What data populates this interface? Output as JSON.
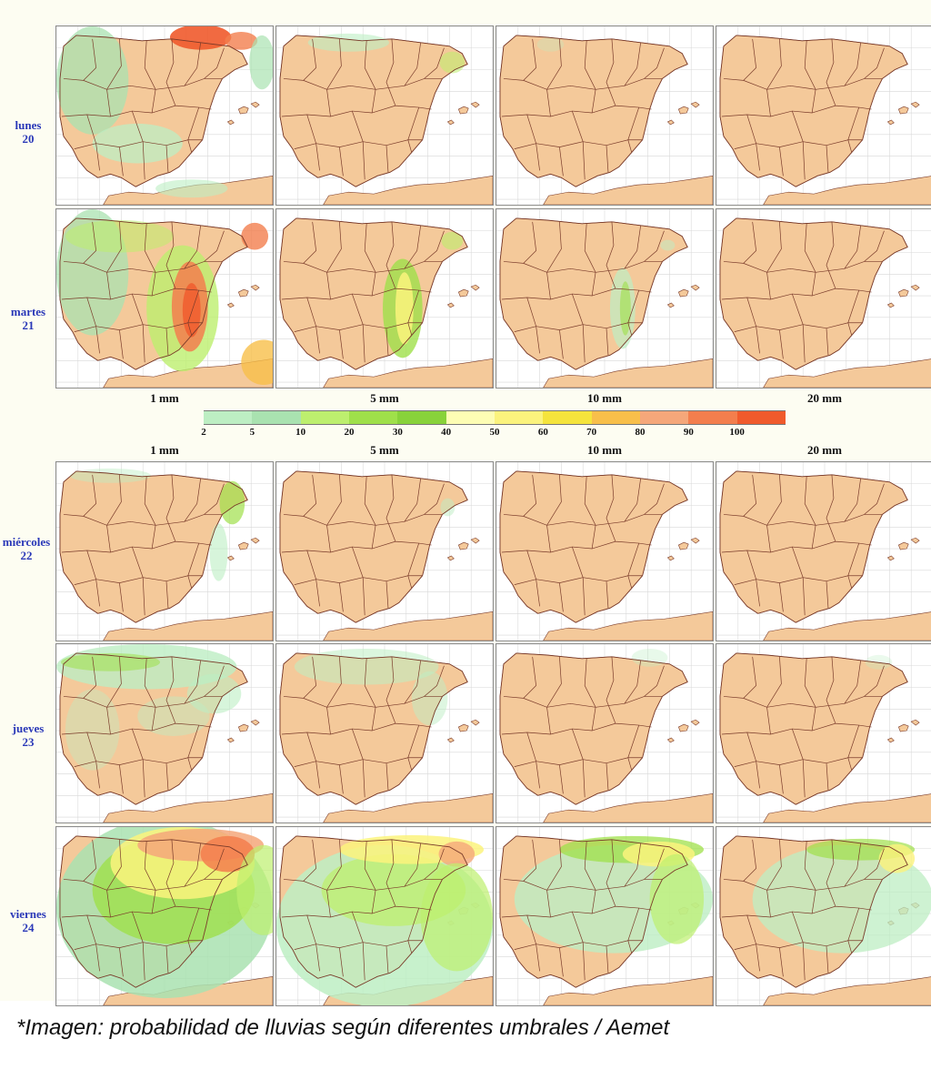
{
  "caption": "*Imagen: probabilidad de lluvias según diferentes umbrales / Aemet",
  "thresholds": [
    "1 mm",
    "5 mm",
    "10 mm",
    "20 mm"
  ],
  "color_scale": {
    "ticks": [
      "2",
      "5",
      "10",
      "20",
      "30",
      "40",
      "50",
      "60",
      "70",
      "80",
      "90",
      "100"
    ],
    "colors": [
      "#bdeec3",
      "#a9e2b0",
      "#bdef6e",
      "#9fe04a",
      "#88d23a",
      "#fdfdb4",
      "#fbf37d",
      "#f5e43c",
      "#f8bf4a",
      "#f5a77a",
      "#f37e4d",
      "#f05a2c"
    ]
  },
  "map_colors": {
    "land": "#f4c99a",
    "sea": "#ffffff",
    "borders": "#7a3b2a",
    "grid": "#d8d8d8"
  },
  "days": [
    {
      "name": "lunes",
      "num": "20"
    },
    {
      "name": "martes",
      "num": "21"
    },
    {
      "name": "miércoles",
      "num": "22"
    },
    {
      "name": "jueves",
      "num": "23"
    },
    {
      "name": "viernes",
      "num": "24"
    }
  ],
  "source": "Aemet"
}
